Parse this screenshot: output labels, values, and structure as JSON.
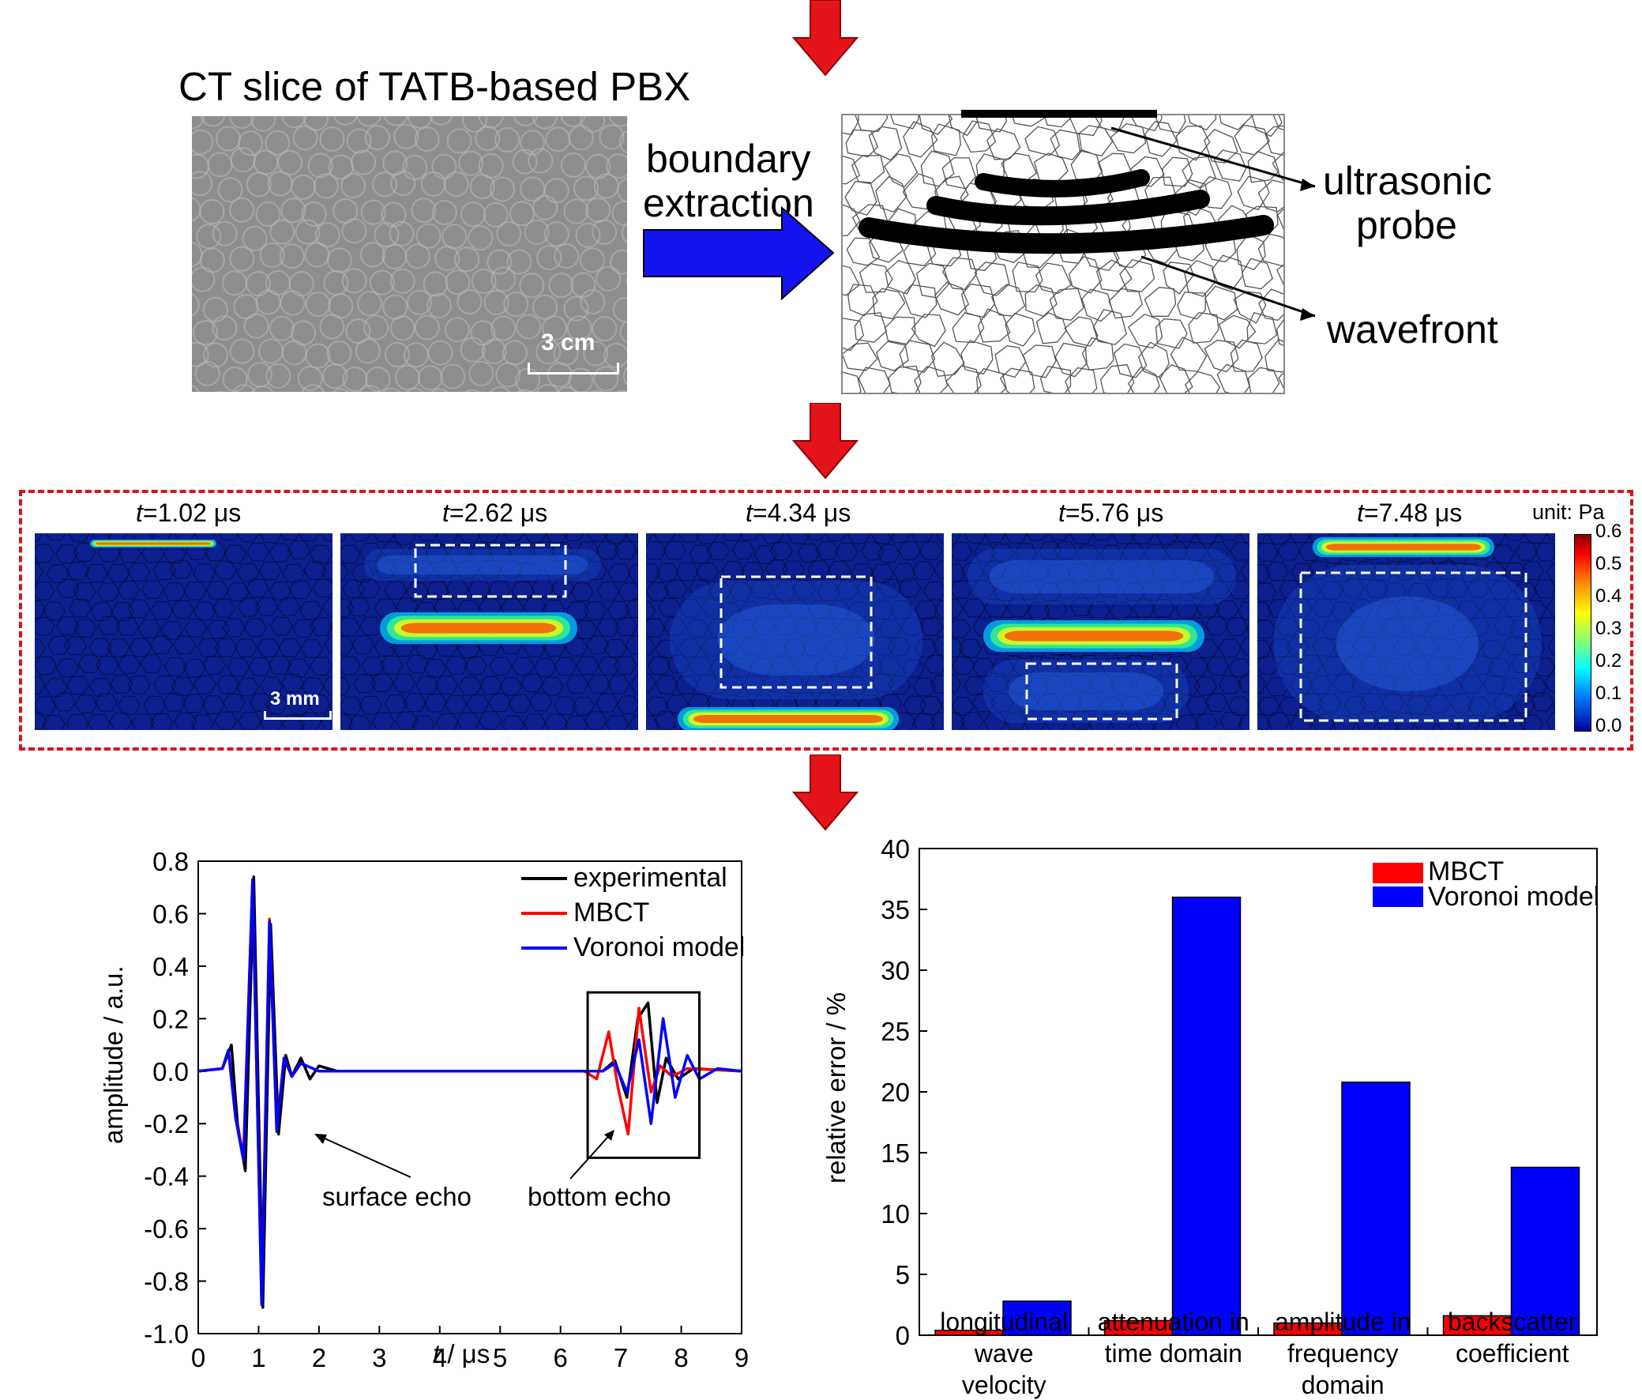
{
  "top": {
    "ct_title": "CT slice of TATB-based PBX",
    "ct_scale": "3 cm",
    "arrow_label_line1": "boundary",
    "arrow_label_line2": "extraction",
    "probe_label_line1": "ultrasonic",
    "probe_label_line2": "probe",
    "wavefront_label": "wavefront"
  },
  "simulation": {
    "panels": [
      {
        "t": "t",
        "value": "=1.02 μs"
      },
      {
        "t": "t",
        "value": "=2.62 μs"
      },
      {
        "t": "t",
        "value": "=4.34 μs"
      },
      {
        "t": "t",
        "value": "=5.76 μs"
      },
      {
        "t": "t",
        "value": "=7.48 μs"
      }
    ],
    "scale_bar": "3 mm",
    "unit": "unit: Pa",
    "colorbar_ticks": [
      "0.6",
      "0.5",
      "0.4",
      "0.3",
      "0.2",
      "0.1",
      "0.0"
    ]
  },
  "colors": {
    "arrow_red": "#e5141b",
    "arrow_blue": "#1414f0",
    "dashed_box": "#d8141b",
    "experimental": "#000000",
    "mbct": "#ff0000",
    "voronoi": "#0000ff",
    "field_background": "#0b1f8f"
  },
  "chart_data": [
    {
      "type": "line",
      "xlabel_italic": "t",
      "xlabel_rest": " / μs",
      "ylabel": "amplitude / a.u.",
      "xlim": [
        0,
        9
      ],
      "ylim": [
        -1.0,
        0.8
      ],
      "xticks": [
        "0",
        "1",
        "2",
        "3",
        "4",
        "5",
        "6",
        "7",
        "8",
        "9"
      ],
      "yticks": [
        "0.8",
        "0.6",
        "0.4",
        "0.2",
        "0.0",
        "-0.2",
        "-0.4",
        "-0.6",
        "-0.8",
        "-1.0"
      ],
      "legend": [
        "experimental",
        "MBCT",
        "Voronoi model"
      ],
      "annotations": [
        "surface echo",
        "bottom echo"
      ],
      "series": [
        {
          "name": "experimental",
          "x": [
            0,
            0.4,
            0.55,
            0.65,
            0.78,
            0.92,
            1.07,
            1.2,
            1.33,
            1.45,
            1.55,
            1.7,
            1.85,
            2.0,
            2.3,
            6.7,
            6.9,
            7.1,
            7.28,
            7.45,
            7.6,
            7.75,
            7.95,
            8.2,
            9
          ],
          "y": [
            0,
            0.01,
            0.1,
            -0.2,
            -0.38,
            0.74,
            -0.9,
            0.56,
            -0.24,
            0.06,
            -0.02,
            0.05,
            -0.03,
            0.02,
            0,
            0,
            0.04,
            -0.1,
            0.2,
            0.26,
            -0.12,
            0.05,
            -0.03,
            0.01,
            0
          ]
        },
        {
          "name": "MBCT",
          "x": [
            0,
            0.4,
            0.5,
            0.62,
            0.75,
            0.9,
            1.05,
            1.18,
            1.3,
            1.42,
            1.55,
            1.7,
            2.0,
            2.4,
            6.4,
            6.6,
            6.8,
            6.95,
            7.12,
            7.3,
            7.5,
            7.65,
            7.85,
            8.1,
            9
          ],
          "y": [
            0,
            0.01,
            0.08,
            -0.18,
            -0.32,
            0.72,
            -0.88,
            0.58,
            -0.22,
            0.05,
            -0.02,
            0.03,
            0,
            0,
            0,
            -0.03,
            0.15,
            -0.06,
            -0.24,
            0.24,
            -0.08,
            0.02,
            -0.02,
            0.01,
            0
          ]
        },
        {
          "name": "Voronoi model",
          "x": [
            0,
            0.4,
            0.5,
            0.62,
            0.75,
            0.9,
            1.05,
            1.18,
            1.3,
            1.42,
            1.55,
            1.7,
            2.0,
            2.4,
            6.7,
            6.9,
            7.1,
            7.3,
            7.5,
            7.7,
            7.9,
            8.1,
            8.3,
            8.6,
            9
          ],
          "y": [
            0,
            0.01,
            0.08,
            -0.18,
            -0.34,
            0.73,
            -0.89,
            0.57,
            -0.23,
            0.05,
            -0.02,
            0.03,
            0,
            0,
            0,
            0.03,
            -0.08,
            0.12,
            -0.2,
            0.2,
            -0.1,
            0.06,
            -0.03,
            0.01,
            0
          ]
        }
      ]
    },
    {
      "type": "bar",
      "ylabel": "relative error / %",
      "ylim": [
        0,
        40
      ],
      "yticks": [
        "0",
        "5",
        "10",
        "15",
        "20",
        "25",
        "30",
        "35",
        "40"
      ],
      "categories": [
        [
          "longitudinal",
          "wave",
          "velocity"
        ],
        [
          "attenuation in",
          "time domain"
        ],
        [
          "amplitude in",
          "frequency",
          "domain"
        ],
        [
          "backscatter",
          "coefficient"
        ]
      ],
      "series": [
        {
          "name": "MBCT",
          "values": [
            0.4,
            1.2,
            1.0,
            1.6
          ]
        },
        {
          "name": "Voronoi model",
          "values": [
            2.8,
            36.0,
            20.8,
            13.8
          ]
        }
      ]
    }
  ]
}
